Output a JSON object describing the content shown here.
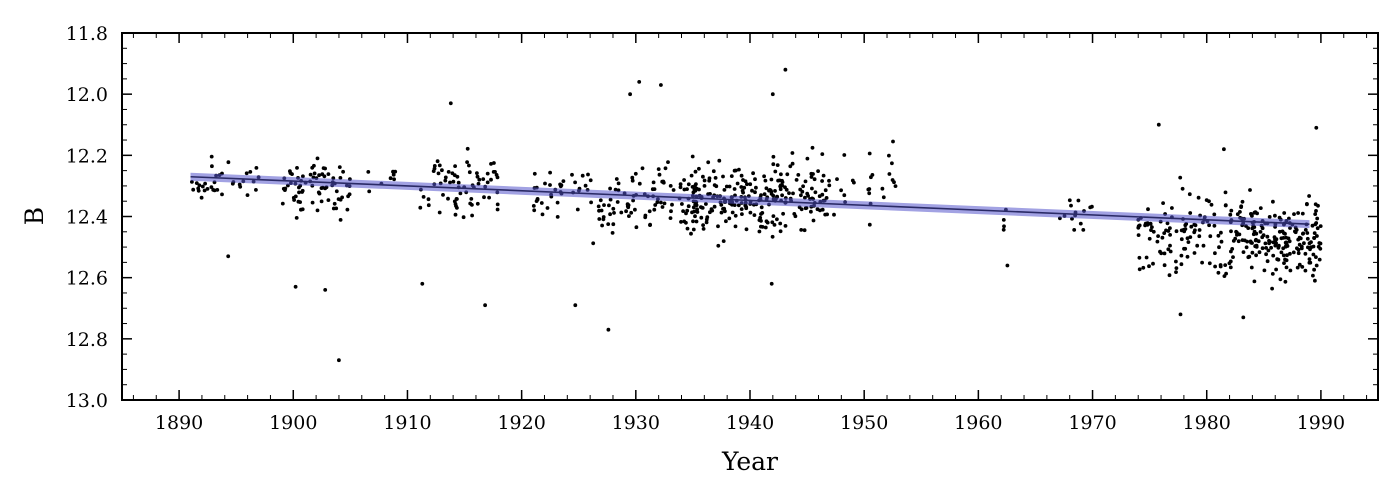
{
  "chart_data": {
    "type": "scatter",
    "xlabel": "Year",
    "ylabel": "B",
    "xlim": [
      1885,
      1995
    ],
    "ylim": [
      13.0,
      11.8
    ],
    "y_inverted": true,
    "grid": false,
    "x_ticks": [
      1890,
      1900,
      1910,
      1920,
      1930,
      1940,
      1950,
      1960,
      1970,
      1980,
      1990
    ],
    "x_tick_labels": [
      "1890",
      "1900",
      "1910",
      "1920",
      "1930",
      "1940",
      "1950",
      "1960",
      "1970",
      "1980",
      "1990"
    ],
    "y_ticks": [
      11.8,
      12.0,
      12.2,
      12.4,
      12.6,
      12.8,
      13.0
    ],
    "y_tick_labels": [
      "11.8",
      "12.0",
      "12.2",
      "12.4",
      "12.6",
      "12.8",
      "13.0"
    ],
    "trend_line": {
      "x": [
        1891,
        1989
      ],
      "y": [
        12.27,
        12.425
      ],
      "color": "#5555cc"
    },
    "point_color": "#000000",
    "clusters": [
      {
        "x": [
          1891,
          1897
        ],
        "y_center": 12.28,
        "spread": 0.07,
        "n": 35
      },
      {
        "x": [
          1899,
          1905
        ],
        "y_center": 12.3,
        "spread": 0.09,
        "n": 75
      },
      {
        "x": [
          1906,
          1909
        ],
        "y_center": 12.27,
        "spread": 0.04,
        "n": 8
      },
      {
        "x": [
          1911,
          1918
        ],
        "y_center": 12.3,
        "spread": 0.1,
        "n": 70
      },
      {
        "x": [
          1921,
          1926
        ],
        "y_center": 12.34,
        "spread": 0.08,
        "n": 35
      },
      {
        "x": [
          1926,
          1933
        ],
        "y_center": 12.35,
        "spread": 0.11,
        "n": 70
      },
      {
        "x": [
          1933,
          1942
        ],
        "y_center": 12.35,
        "spread": 0.1,
        "n": 190
      },
      {
        "x": [
          1942,
          1947
        ],
        "y_center": 12.33,
        "spread": 0.11,
        "n": 95
      },
      {
        "x": [
          1947,
          1953
        ],
        "y_center": 12.3,
        "spread": 0.1,
        "n": 25
      },
      {
        "x": [
          1962,
          1963
        ],
        "y_center": 12.45,
        "spread": 0.12,
        "n": 5
      },
      {
        "x": [
          1967,
          1970
        ],
        "y_center": 12.4,
        "spread": 0.09,
        "n": 14
      },
      {
        "x": [
          1974,
          1982
        ],
        "y_center": 12.46,
        "spread": 0.13,
        "n": 110
      },
      {
        "x": [
          1982,
          1990
        ],
        "y_center": 12.47,
        "spread": 0.11,
        "n": 210
      }
    ],
    "outliers": [
      {
        "x": 1904,
        "y": 12.87
      },
      {
        "x": 1900.2,
        "y": 12.63
      },
      {
        "x": 1902.8,
        "y": 12.64
      },
      {
        "x": 1916.8,
        "y": 12.69
      },
      {
        "x": 1924.7,
        "y": 12.69
      },
      {
        "x": 1927.6,
        "y": 12.77
      },
      {
        "x": 1930.3,
        "y": 11.96
      },
      {
        "x": 1929.5,
        "y": 12.0
      },
      {
        "x": 1932.2,
        "y": 11.97
      },
      {
        "x": 1943.1,
        "y": 11.92
      },
      {
        "x": 1942.0,
        "y": 12.0
      },
      {
        "x": 1913.8,
        "y": 12.03
      },
      {
        "x": 1911.3,
        "y": 12.62
      },
      {
        "x": 1894.3,
        "y": 12.53
      },
      {
        "x": 1941.9,
        "y": 12.62
      },
      {
        "x": 1977.7,
        "y": 12.72
      },
      {
        "x": 1983.2,
        "y": 12.73
      },
      {
        "x": 1989.6,
        "y": 12.11
      },
      {
        "x": 1975.8,
        "y": 12.1
      },
      {
        "x": 1981.5,
        "y": 12.18
      }
    ]
  }
}
